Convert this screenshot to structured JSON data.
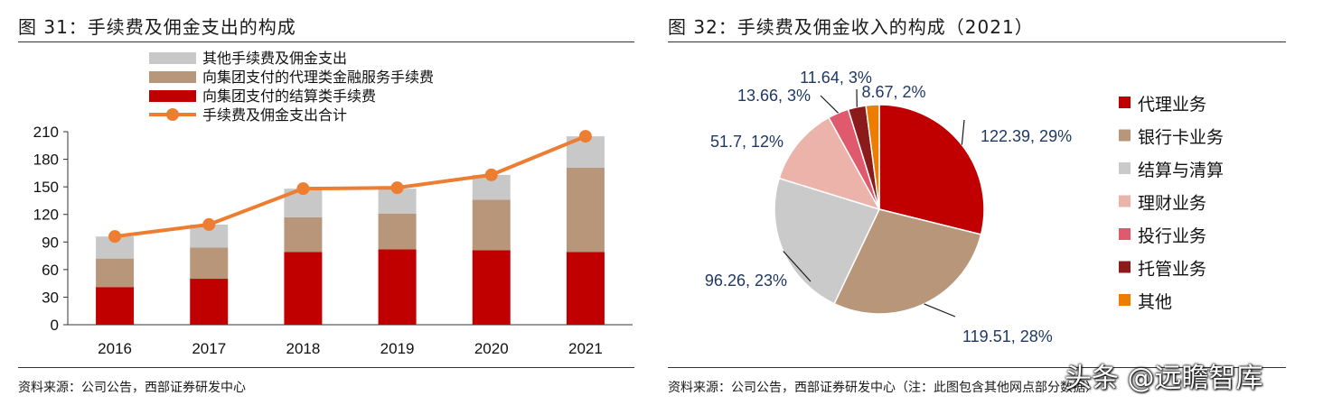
{
  "left": {
    "title": "图 31：手续费及佣金支出的构成",
    "source": "资料来源：公司公告，西部证券研发中心",
    "chart_data": {
      "type": "bar",
      "stacked": true,
      "categories": [
        "2016",
        "2017",
        "2018",
        "2019",
        "2020",
        "2021"
      ],
      "series": [
        {
          "name": "向集团支付的结算类手续费",
          "color": "#c00000",
          "values": [
            41,
            50,
            79,
            82,
            81,
            79
          ]
        },
        {
          "name": "向集团支付的代理类金融服务手续费",
          "color": "#b8967a",
          "values": [
            31,
            34,
            38,
            39,
            55,
            92
          ]
        },
        {
          "name": "其他手续费及佣金支出",
          "color": "#c8c8c8",
          "values": [
            24,
            25,
            31,
            27,
            27,
            34
          ]
        }
      ],
      "line": {
        "name": "手续费及佣金支出合计",
        "color": "#ed7d31",
        "values": [
          96,
          109,
          148,
          149,
          163,
          205
        ]
      },
      "legend_order": [
        "其他手续费及佣金支出",
        "向集团支付的代理类金融服务手续费",
        "向集团支付的结算类手续费",
        "手续费及佣金支出合计"
      ],
      "y_ticks": [
        "0",
        "30",
        "60",
        "90",
        "120",
        "150",
        "180",
        "210"
      ],
      "ylim": [
        0,
        210
      ]
    }
  },
  "right": {
    "title": "图 32：手续费及佣金收入的构成（2021）",
    "source": "资料来源：公司公告，西部证券研发中心（注：此图包含其他网点部分数据）",
    "chart_data": {
      "type": "pie",
      "slices": [
        {
          "name": "代理业务",
          "value": 122.39,
          "percent": "29%",
          "label": "122.39, 29%",
          "color": "#c00000"
        },
        {
          "name": "银行卡业务",
          "value": 119.51,
          "percent": "28%",
          "label": "119.51, 28%",
          "color": "#b8967a"
        },
        {
          "name": "结算与清算",
          "value": 96.26,
          "percent": "23%",
          "label": "96.26, 23%",
          "color": "#cacaca"
        },
        {
          "name": "理财业务",
          "value": 51.7,
          "percent": "12%",
          "label": "51.7, 12%",
          "color": "#ebb3a9"
        },
        {
          "name": "投行业务",
          "value": 13.66,
          "percent": "3%",
          "label": "13.66, 3%",
          "color": "#e05a6e"
        },
        {
          "name": "托管业务",
          "value": 11.64,
          "percent": "3%",
          "label": "11.64, 3%",
          "color": "#8b1a1a"
        },
        {
          "name": "其他",
          "value": 8.67,
          "percent": "2%",
          "label": "8.67, 2%",
          "color": "#ed7d00"
        }
      ],
      "label_color": "#1f3864"
    }
  },
  "watermark": "头条 @远瞻智库"
}
